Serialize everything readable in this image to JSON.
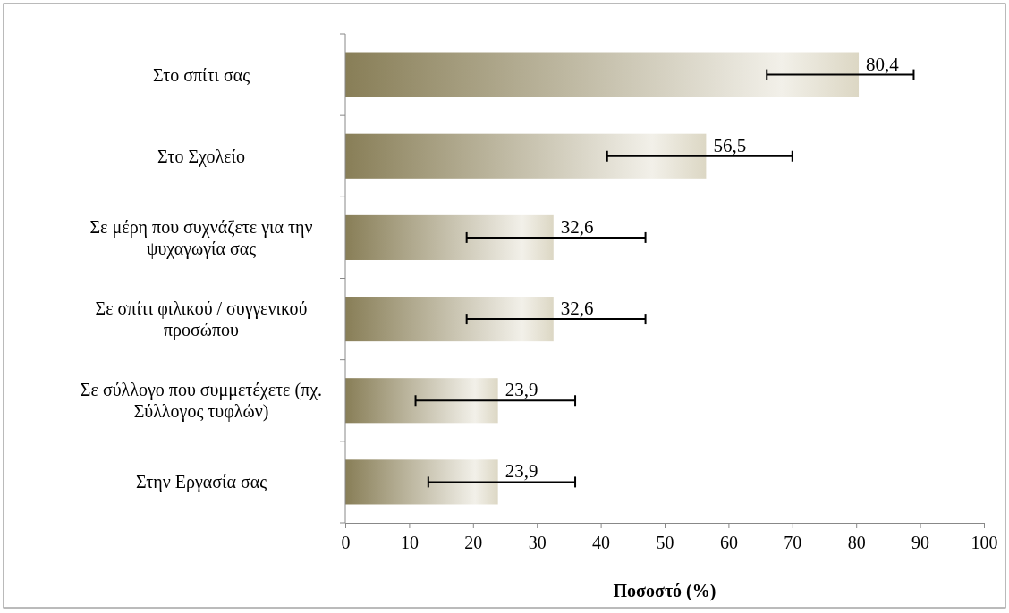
{
  "chart_data": {
    "type": "bar",
    "orientation": "horizontal",
    "xlabel": "Ποσοστό (%)",
    "categories": [
      "Στο σπίτι σας",
      "Στο Σχολείο",
      "Σε μέρη που συχνάζετε για την ψυχαγωγία σας",
      "Σε σπίτι φιλικού /  συγγενικού προσώπου",
      "Σε σύλλογο που συμμετέχετε (πχ. Σύλλογος τυφλών)",
      "Στην Εργασία σας"
    ],
    "values": [
      80.4,
      56.5,
      32.6,
      32.6,
      23.9,
      23.9
    ],
    "value_labels": [
      "80,4",
      "56,5",
      "32,6",
      "32,6",
      "23,9",
      "23,9"
    ],
    "errors": [
      [
        66,
        89
      ],
      [
        41,
        70
      ],
      [
        19,
        47
      ],
      [
        19,
        47
      ],
      [
        11,
        36
      ],
      [
        13,
        36
      ]
    ],
    "color": "#a89c6c",
    "xlim": [
      0,
      100
    ],
    "xticks": [
      0,
      10,
      20,
      30,
      40,
      50,
      60,
      70,
      80,
      90,
      100
    ],
    "grid": false
  }
}
